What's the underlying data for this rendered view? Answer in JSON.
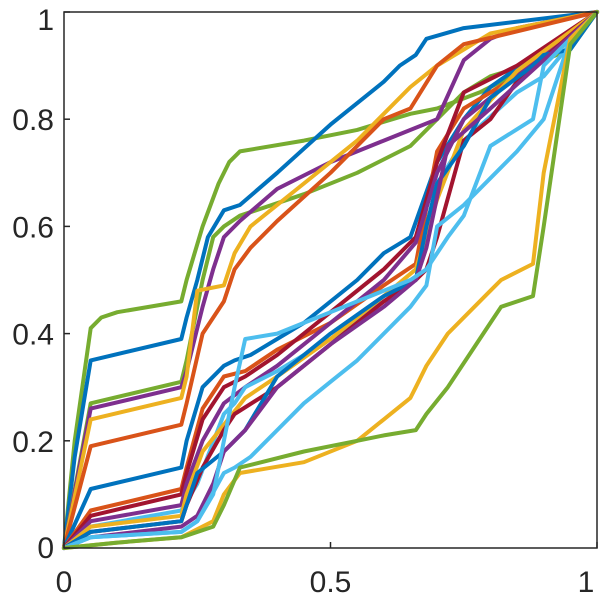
{
  "chart_data": {
    "type": "line",
    "title": "",
    "xlabel": "",
    "ylabel": "",
    "xlim": [
      0,
      1
    ],
    "ylim": [
      0,
      1
    ],
    "grid": false,
    "xticks": [
      0,
      0.5,
      1
    ],
    "xtick_labels": [
      "0",
      "0.5",
      "1"
    ],
    "yticks": [
      0,
      0.2,
      0.4,
      0.6,
      0.8,
      1
    ],
    "ytick_labels": [
      "0",
      "0.2",
      "0.4",
      "0.6",
      "0.8",
      "1"
    ],
    "series": [
      {
        "color": "#77AC30",
        "x": [
          0,
          0.02,
          0.05,
          0.07,
          0.1,
          0.22,
          0.23,
          0.26,
          0.29,
          0.31,
          0.33,
          0.45,
          0.55,
          0.65,
          0.7,
          0.78,
          0.82,
          0.88,
          0.93,
          1
        ],
        "y": [
          0,
          0.2,
          0.41,
          0.43,
          0.44,
          0.46,
          0.5,
          0.6,
          0.68,
          0.72,
          0.74,
          0.76,
          0.78,
          0.81,
          0.82,
          0.85,
          0.87,
          0.9,
          0.93,
          1
        ]
      },
      {
        "color": "#0072BD",
        "x": [
          0,
          0.02,
          0.05,
          0.22,
          0.23,
          0.25,
          0.27,
          0.3,
          0.33,
          0.4,
          0.5,
          0.6,
          0.63,
          0.66,
          0.68,
          0.75,
          1
        ],
        "y": [
          0,
          0.17,
          0.35,
          0.39,
          0.43,
          0.5,
          0.58,
          0.63,
          0.64,
          0.7,
          0.79,
          0.87,
          0.9,
          0.92,
          0.95,
          0.97,
          1
        ]
      },
      {
        "color": "#77AC30",
        "x": [
          0,
          0.05,
          0.22,
          0.23,
          0.26,
          0.28,
          0.3,
          0.33,
          0.45,
          0.55,
          0.65,
          0.75,
          0.8,
          0.9,
          0.95,
          1
        ],
        "y": [
          0,
          0.27,
          0.31,
          0.35,
          0.5,
          0.58,
          0.6,
          0.62,
          0.66,
          0.7,
          0.75,
          0.85,
          0.88,
          0.91,
          0.93,
          1
        ]
      },
      {
        "color": "#7E2F8E",
        "x": [
          0,
          0.05,
          0.22,
          0.23,
          0.26,
          0.28,
          0.3,
          0.33,
          0.4,
          0.5,
          0.6,
          0.7,
          0.75,
          0.8,
          0.85,
          1
        ],
        "y": [
          0,
          0.26,
          0.3,
          0.33,
          0.45,
          0.52,
          0.58,
          0.61,
          0.67,
          0.72,
          0.76,
          0.8,
          0.91,
          0.95,
          0.97,
          1
        ]
      },
      {
        "color": "#EDB120",
        "x": [
          0,
          0.05,
          0.22,
          0.23,
          0.25,
          0.3,
          0.32,
          0.35,
          0.45,
          0.55,
          0.6,
          0.65,
          0.7,
          0.75,
          0.8,
          1
        ],
        "y": [
          0,
          0.24,
          0.28,
          0.32,
          0.48,
          0.49,
          0.55,
          0.6,
          0.68,
          0.76,
          0.81,
          0.86,
          0.9,
          0.93,
          0.96,
          1
        ]
      },
      {
        "color": "#D95319",
        "x": [
          0,
          0.05,
          0.22,
          0.23,
          0.26,
          0.3,
          0.32,
          0.35,
          0.4,
          0.5,
          0.6,
          0.65,
          0.7,
          0.75,
          1
        ],
        "y": [
          0,
          0.19,
          0.23,
          0.27,
          0.4,
          0.46,
          0.52,
          0.56,
          0.61,
          0.7,
          0.8,
          0.82,
          0.9,
          0.94,
          1
        ]
      },
      {
        "color": "#0072BD",
        "x": [
          0,
          0.05,
          0.22,
          0.23,
          0.26,
          0.3,
          0.32,
          0.35,
          0.45,
          0.55,
          0.6,
          0.65,
          0.7,
          0.75,
          0.8,
          1
        ],
        "y": [
          0,
          0.11,
          0.15,
          0.2,
          0.3,
          0.34,
          0.35,
          0.36,
          0.42,
          0.5,
          0.55,
          0.58,
          0.72,
          0.8,
          0.86,
          1
        ]
      },
      {
        "color": "#D95319",
        "x": [
          0,
          0.05,
          0.22,
          0.23,
          0.26,
          0.3,
          0.34,
          0.4,
          0.5,
          0.6,
          0.66,
          0.7,
          0.75,
          0.85,
          1
        ],
        "y": [
          0,
          0.07,
          0.11,
          0.15,
          0.26,
          0.32,
          0.33,
          0.37,
          0.42,
          0.49,
          0.53,
          0.74,
          0.82,
          0.88,
          1
        ]
      },
      {
        "color": "#A2142F",
        "x": [
          0,
          0.05,
          0.22,
          0.23,
          0.26,
          0.3,
          0.34,
          0.4,
          0.5,
          0.6,
          0.66,
          0.7,
          0.75,
          0.85,
          1
        ],
        "y": [
          0,
          0.06,
          0.1,
          0.14,
          0.24,
          0.3,
          0.32,
          0.36,
          0.44,
          0.52,
          0.58,
          0.72,
          0.85,
          0.9,
          1
        ]
      },
      {
        "color": "#7E2F8E",
        "x": [
          0,
          0.05,
          0.22,
          0.23,
          0.26,
          0.3,
          0.34,
          0.4,
          0.5,
          0.6,
          0.66,
          0.7,
          0.75,
          0.85,
          1
        ],
        "y": [
          0,
          0.05,
          0.08,
          0.12,
          0.2,
          0.27,
          0.3,
          0.34,
          0.42,
          0.5,
          0.57,
          0.7,
          0.8,
          0.88,
          1
        ]
      },
      {
        "color": "#4DBEEE",
        "x": [
          0,
          0.05,
          0.22,
          0.25,
          0.3,
          0.32,
          0.34,
          0.4,
          0.5,
          0.6,
          0.66,
          0.7,
          0.75,
          0.85,
          0.9,
          1
        ],
        "y": [
          0,
          0.04,
          0.07,
          0.12,
          0.25,
          0.27,
          0.3,
          0.33,
          0.39,
          0.46,
          0.5,
          0.68,
          0.76,
          0.85,
          0.88,
          1
        ]
      },
      {
        "color": "#EDB120",
        "x": [
          0,
          0.05,
          0.22,
          0.23,
          0.26,
          0.3,
          0.34,
          0.4,
          0.5,
          0.6,
          0.66,
          0.7,
          0.75,
          0.85,
          1
        ],
        "y": [
          0,
          0.04,
          0.06,
          0.1,
          0.18,
          0.23,
          0.28,
          0.32,
          0.39,
          0.47,
          0.52,
          0.65,
          0.78,
          0.89,
          1
        ]
      },
      {
        "color": "#A2142F",
        "x": [
          0,
          0.05,
          0.22,
          0.23,
          0.26,
          0.3,
          0.32,
          0.4,
          0.5,
          0.6,
          0.66,
          0.68,
          0.7,
          0.75,
          0.8,
          0.85,
          1
        ],
        "y": [
          0,
          0.03,
          0.05,
          0.08,
          0.15,
          0.22,
          0.25,
          0.3,
          0.38,
          0.46,
          0.5,
          0.52,
          0.58,
          0.76,
          0.8,
          0.87,
          1
        ]
      },
      {
        "color": "#0072BD",
        "x": [
          0,
          0.05,
          0.22,
          0.23,
          0.25,
          0.3,
          0.34,
          0.4,
          0.5,
          0.6,
          0.66,
          0.68,
          0.7,
          0.75,
          0.8,
          0.88,
          0.9,
          0.95,
          1
        ],
        "y": [
          0,
          0.03,
          0.05,
          0.08,
          0.14,
          0.18,
          0.22,
          0.32,
          0.4,
          0.47,
          0.5,
          0.6,
          0.68,
          0.75,
          0.84,
          0.9,
          0.92,
          0.93,
          1
        ]
      },
      {
        "color": "#7E2F8E",
        "x": [
          0,
          0.05,
          0.22,
          0.25,
          0.28,
          0.3,
          0.34,
          0.4,
          0.5,
          0.6,
          0.66,
          0.68,
          0.72,
          0.8,
          0.9,
          1
        ],
        "y": [
          0,
          0.02,
          0.04,
          0.06,
          0.12,
          0.18,
          0.22,
          0.3,
          0.38,
          0.45,
          0.5,
          0.56,
          0.75,
          0.82,
          0.91,
          1
        ]
      },
      {
        "color": "#4DBEEE",
        "x": [
          0,
          0.05,
          0.22,
          0.25,
          0.28,
          0.3,
          0.32,
          0.34,
          0.4,
          0.45,
          0.5,
          0.55,
          0.6,
          0.65,
          0.68,
          0.72,
          0.75,
          0.8,
          0.88,
          0.9,
          0.95,
          1
        ],
        "y": [
          0,
          0.02,
          0.03,
          0.05,
          0.1,
          0.2,
          0.3,
          0.39,
          0.4,
          0.42,
          0.44,
          0.46,
          0.48,
          0.5,
          0.52,
          0.58,
          0.62,
          0.75,
          0.8,
          0.9,
          0.95,
          1
        ]
      },
      {
        "color": "#4DBEEE",
        "x": [
          0,
          0.05,
          0.22,
          0.25,
          0.3,
          0.32,
          0.35,
          0.4,
          0.45,
          0.5,
          0.55,
          0.6,
          0.65,
          0.68,
          0.7,
          0.75,
          0.8,
          0.85,
          0.9,
          0.95,
          1
        ],
        "y": [
          0,
          0.02,
          0.03,
          0.05,
          0.14,
          0.15,
          0.17,
          0.22,
          0.27,
          0.31,
          0.35,
          0.4,
          0.45,
          0.49,
          0.6,
          0.64,
          0.69,
          0.74,
          0.8,
          0.95,
          1
        ]
      },
      {
        "color": "#EDB120",
        "x": [
          0,
          0.1,
          0.22,
          0.28,
          0.3,
          0.33,
          0.45,
          0.55,
          0.6,
          0.65,
          0.66,
          0.68,
          0.72,
          0.8,
          0.82,
          0.88,
          0.9,
          0.95,
          1
        ],
        "y": [
          0,
          0.01,
          0.02,
          0.05,
          0.1,
          0.14,
          0.16,
          0.2,
          0.24,
          0.28,
          0.3,
          0.34,
          0.4,
          0.48,
          0.5,
          0.53,
          0.7,
          0.95,
          1
        ]
      },
      {
        "color": "#77AC30",
        "x": [
          0,
          0.1,
          0.22,
          0.28,
          0.3,
          0.33,
          0.45,
          0.55,
          0.6,
          0.66,
          0.68,
          0.72,
          0.8,
          0.82,
          0.88,
          0.9,
          0.95,
          1
        ],
        "y": [
          0,
          0.01,
          0.02,
          0.04,
          0.08,
          0.15,
          0.18,
          0.2,
          0.21,
          0.22,
          0.25,
          0.3,
          0.42,
          0.45,
          0.47,
          0.6,
          0.94,
          1
        ]
      }
    ]
  }
}
